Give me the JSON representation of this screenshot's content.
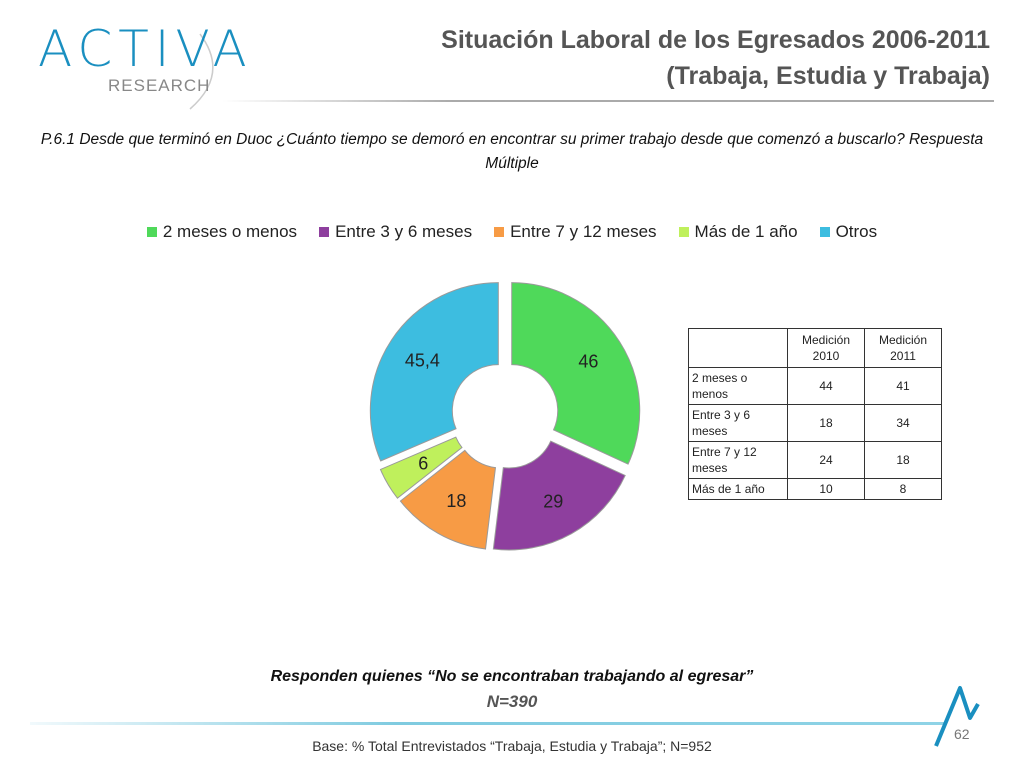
{
  "logo": {
    "brand": "ACTIVA",
    "sub": "RESEARCH"
  },
  "title": {
    "line1": "Situación Laboral de los Egresados 2006-2011",
    "line2": "(Trabaja, Estudia y Trabaja)"
  },
  "question": "P.6.1 Desde que terminó en Duoc ¿Cuánto tiempo se demoró en encontrar su primer trabajo desde que comenzó a buscarlo? Respuesta Múltiple",
  "colors": {
    "green": "#4fd95a",
    "purple": "#8e3f9e",
    "orange": "#f79b45",
    "lightgreen": "#bff05c",
    "blue": "#3dbde0",
    "accent": "#1a8fc0"
  },
  "chart_data": {
    "type": "pie",
    "style": "exploded donut",
    "legend_position": "top",
    "categories": [
      "2 meses o menos",
      "Entre 3 y 6 meses",
      "Entre 7 y 12 meses",
      "Más de 1 año",
      "Otros"
    ],
    "values": [
      46,
      29,
      18,
      6,
      45.4
    ],
    "data_labels": [
      "46",
      "29",
      "18",
      "6",
      "45,4"
    ]
  },
  "table": {
    "headers": [
      "",
      "Medición 2010",
      "Medición 2011"
    ],
    "rows": [
      {
        "label": "2 meses o menos",
        "v2010": "44",
        "v2011": "41"
      },
      {
        "label": "Entre 3 y 6 meses",
        "v2010": "18",
        "v2011": "34"
      },
      {
        "label": "Entre 7 y 12 meses",
        "v2010": "24",
        "v2011": "18"
      },
      {
        "label": "Más de 1 año",
        "v2010": "10",
        "v2011": "8"
      }
    ]
  },
  "footer": {
    "respond": "Responden quienes “No se encontraban trabajando al egresar”",
    "n": "N=390",
    "base": "Base: % Total Entrevistados “Trabaja, Estudia y Trabaja”; N=952",
    "page": "62"
  }
}
